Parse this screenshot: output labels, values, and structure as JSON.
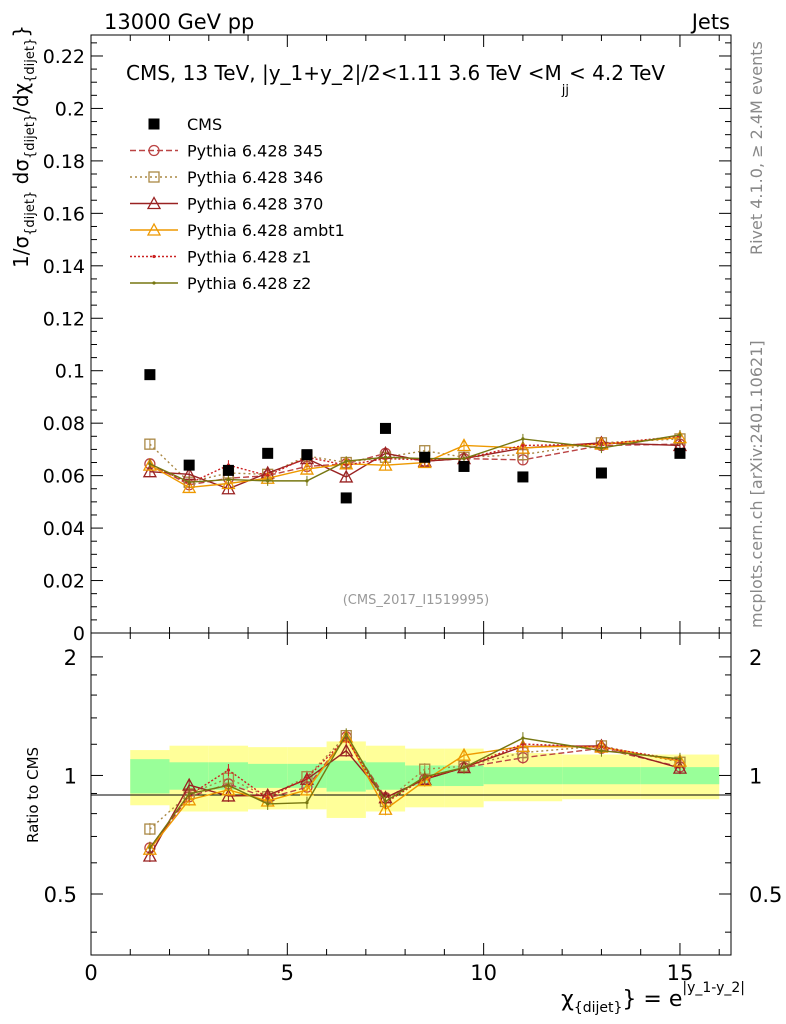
{
  "header": {
    "left": "13000 GeV pp",
    "right": "Jets"
  },
  "side": {
    "rivet": "Rivet 4.1.0, ≥ 2.4M events",
    "mcplots": "mcplots.cern.ch [arXiv:2401.10621]"
  },
  "chart_data": {
    "type": "scatter",
    "title": "CMS, 13 TeV, |y_1+y_2|/2<1.11 3.6 TeV <M_jj< 4.2 TeV",
    "title_parts": {
      "main": "CMS, 13 TeV, |y_1+y_2|/2<1.11 3.6 TeV <M",
      "sub": "jj",
      "tail": "< 4.2 TeV"
    },
    "watermark": "(CMS_2017_I1519995)",
    "ylabel_top": "1/σ{dijet} dσ{dijet}/dχ{dijet}",
    "ylabel_ratio": "Ratio to CMS",
    "xlabel": "χ{dijet} = e^|y_1-y_2|",
    "xlabel_parts": {
      "chi": "χ",
      "sub": "{dijet}",
      "eq": "} = e",
      "sup": "|y_1-y_2|"
    },
    "xlim": [
      0,
      16.3
    ],
    "ylim": [
      0,
      0.228
    ],
    "ratio_ylim": [
      0.35,
      2.3
    ],
    "x_ticks": [
      0,
      5,
      10,
      15
    ],
    "x_tick_labels": [
      "0",
      "5",
      "10",
      "15"
    ],
    "y_ticks": [
      0,
      0.02,
      0.04,
      0.06,
      0.08,
      0.1,
      0.12,
      0.14,
      0.16,
      0.18,
      0.2,
      0.22
    ],
    "y_tick_labels": [
      "0",
      "0.02",
      "0.04",
      "0.06",
      "0.08",
      "0.1",
      "0.12",
      "0.14",
      "0.16",
      "0.18",
      "0.2",
      "0.22"
    ],
    "ratio_ticks": [
      0.5,
      1,
      2
    ],
    "ratio_tick_labels": [
      "0.5",
      "1",
      "2"
    ],
    "bins": [
      [
        1,
        2
      ],
      [
        2,
        3
      ],
      [
        3,
        4
      ],
      [
        4,
        5
      ],
      [
        5,
        6
      ],
      [
        6,
        7
      ],
      [
        7,
        8
      ],
      [
        8,
        9
      ],
      [
        9,
        10
      ],
      [
        10,
        12
      ],
      [
        12,
        14
      ],
      [
        14,
        16
      ]
    ],
    "x": [
      1.5,
      2.5,
      3.5,
      4.5,
      5.5,
      6.5,
      7.5,
      8.5,
      9.5,
      11,
      13,
      15
    ],
    "data": {
      "name": "CMS",
      "values": [
        0.0985,
        0.064,
        0.062,
        0.0685,
        0.068,
        0.0515,
        0.078,
        0.067,
        0.0635,
        0.0595,
        0.061,
        0.0685
      ]
    },
    "band_inner": [
      0.1,
      0.08,
      0.08,
      0.07,
      0.07,
      0.09,
      0.08,
      0.06,
      0.06,
      0.05,
      0.05,
      0.05
    ],
    "band_outer": [
      0.16,
      0.19,
      0.19,
      0.18,
      0.18,
      0.22,
      0.19,
      0.17,
      0.17,
      0.14,
      0.13,
      0.13
    ],
    "series": [
      {
        "name": "Pythia 6.428 345",
        "color": "#bb4444",
        "dash": "6,3",
        "marker": "circle",
        "values": [
          0.0645,
          0.0565,
          0.059,
          0.06,
          0.0635,
          0.0645,
          0.0685,
          0.0655,
          0.0665,
          0.066,
          0.0715,
          0.072
        ]
      },
      {
        "name": "Pythia 6.428 346",
        "color": "#aa8844",
        "dash": "2,3",
        "marker": "square",
        "values": [
          0.072,
          0.0575,
          0.061,
          0.0605,
          0.0675,
          0.065,
          0.067,
          0.0695,
          0.067,
          0.068,
          0.0725,
          0.074
        ]
      },
      {
        "name": "Pythia 6.428 370",
        "color": "#992222",
        "dash": "",
        "marker": "triangle",
        "values": [
          0.0615,
          0.0605,
          0.055,
          0.061,
          0.0665,
          0.0595,
          0.0685,
          0.0655,
          0.0665,
          0.0705,
          0.0725,
          0.0715
        ]
      },
      {
        "name": "Pythia 6.428 ambt1",
        "color": "#ee9900",
        "dash": "",
        "marker": "triangle",
        "values": [
          0.064,
          0.0555,
          0.057,
          0.059,
          0.0625,
          0.0645,
          0.064,
          0.065,
          0.0715,
          0.0705,
          0.072,
          0.0745
        ]
      },
      {
        "name": "Pythia 6.428 z1",
        "color": "#cc2222",
        "dash": "2,2",
        "marker": "dot",
        "values": [
          0.0645,
          0.057,
          0.064,
          0.06,
          0.067,
          0.064,
          0.0665,
          0.066,
          0.0665,
          0.0715,
          0.072,
          0.075
        ]
      },
      {
        "name": "Pythia 6.428 z2",
        "color": "#777711",
        "dash": "",
        "marker": "dot",
        "values": [
          0.0645,
          0.0575,
          0.0585,
          0.058,
          0.058,
          0.0655,
          0.067,
          0.0665,
          0.0665,
          0.074,
          0.0705,
          0.0755
        ]
      }
    ]
  }
}
